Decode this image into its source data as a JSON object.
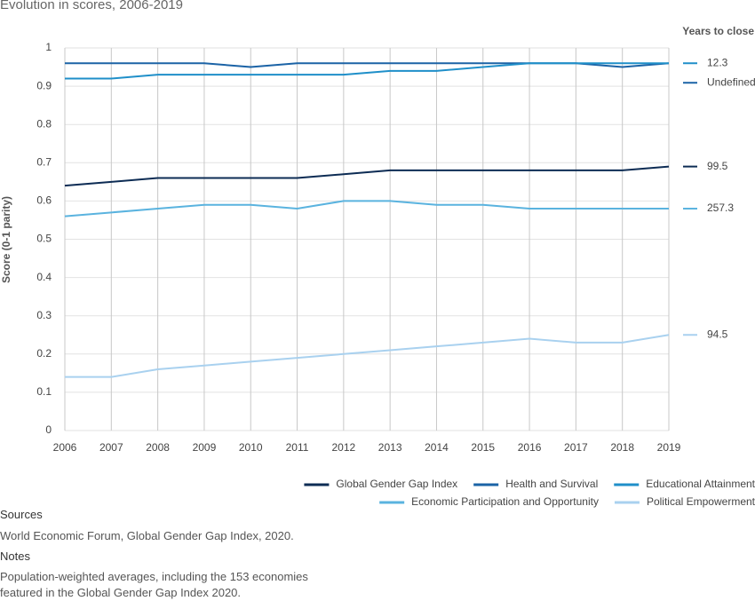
{
  "chart_data": {
    "type": "line",
    "title": "Evolution in scores, 2006-2019",
    "y_label": "Score (0-1 parity)",
    "side_heading": "Years to close",
    "x": [
      2006,
      2007,
      2008,
      2009,
      2010,
      2011,
      2012,
      2013,
      2014,
      2015,
      2016,
      2017,
      2018,
      2019
    ],
    "xlim": [
      2006,
      2019
    ],
    "ylim": [
      0,
      1
    ],
    "yticks": [
      0,
      0.1,
      0.2,
      0.3,
      0.4,
      0.5,
      0.6,
      0.7,
      0.8,
      0.9,
      1
    ],
    "grid": true,
    "legend": "bottom-right",
    "series": [
      {
        "name": "Global Gender Gap Index",
        "color": "#0d2c54",
        "years_to_close": 99.5,
        "values": [
          0.64,
          0.65,
          0.66,
          0.66,
          0.66,
          0.66,
          0.67,
          0.68,
          0.68,
          0.68,
          0.68,
          0.68,
          0.68,
          0.69
        ]
      },
      {
        "name": "Health and Survival",
        "color": "#1b63a6",
        "years_to_close": "Undefined",
        "values": [
          0.96,
          0.96,
          0.96,
          0.96,
          0.95,
          0.96,
          0.96,
          0.96,
          0.96,
          0.96,
          0.96,
          0.96,
          0.95,
          0.96
        ]
      },
      {
        "name": "Educational Attainment",
        "color": "#1f8fc9",
        "years_to_close": 12.3,
        "values": [
          0.92,
          0.92,
          0.93,
          0.93,
          0.93,
          0.93,
          0.93,
          0.94,
          0.94,
          0.95,
          0.96,
          0.96,
          0.96,
          0.96
        ]
      },
      {
        "name": "Economic Participation and Opportunity",
        "color": "#5ab3df",
        "years_to_close": 257.3,
        "values": [
          0.56,
          0.57,
          0.58,
          0.59,
          0.59,
          0.58,
          0.6,
          0.6,
          0.59,
          0.59,
          0.58,
          0.58,
          0.58,
          0.58
        ]
      },
      {
        "name": "Political Empowerment",
        "color": "#a9d1ef",
        "years_to_close": 94.5,
        "values": [
          0.14,
          0.14,
          0.16,
          0.17,
          0.18,
          0.19,
          0.2,
          0.21,
          0.22,
          0.23,
          0.24,
          0.23,
          0.23,
          0.25
        ]
      }
    ]
  },
  "sources_heading": "Sources",
  "sources": "World Economic Forum, Global Gender Gap Index, 2020.",
  "notes_heading": "Notes",
  "notes": "Population-weighted averages, including the 153 economies featured in the Global Gender Gap Index 2020."
}
